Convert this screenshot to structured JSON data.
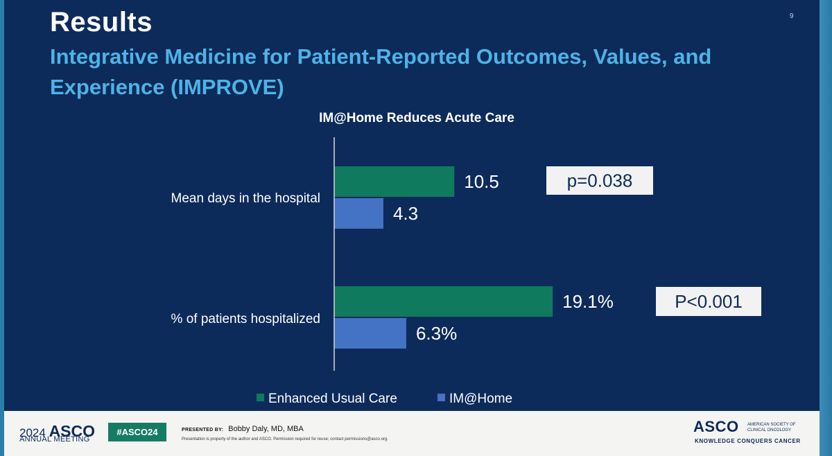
{
  "slide": {
    "title": "Results",
    "number": "9",
    "subtitle": "Integrative Medicine for Patient-Reported Outcomes, Values, and Experience (IMPROVE)"
  },
  "chart_data": {
    "type": "bar",
    "orientation": "horizontal",
    "title": "IM@Home Reduces Acute Care",
    "categories": [
      "Mean days in the hospital",
      "% of patients hospitalized"
    ],
    "series": [
      {
        "name": "Enhanced Usual Care",
        "values": [
          10.5,
          19.1
        ],
        "labels": [
          "10.5",
          "19.1%"
        ],
        "color": "#0f7a5e"
      },
      {
        "name": "IM@Home",
        "values": [
          4.3,
          6.3
        ],
        "labels": [
          "4.3",
          "6.3%"
        ],
        "color": "#4472c4"
      }
    ],
    "annotations": [
      "p=0.038",
      "P<0.001"
    ],
    "legend_position": "bottom",
    "grid": false,
    "xlim": [
      0,
      30
    ]
  },
  "footer": {
    "year": "2024",
    "meeting_brand": "ASCO",
    "meeting": "ANNUAL MEETING",
    "hashtag": "#ASCO24",
    "presented_by_label": "PRESENTED BY:",
    "presenter": "Bobby Daly, MD, MBA",
    "notice": "Presentation is property of the author and ASCO. Permission required for reuse; contact permissions@asco.org.",
    "logo_word": "ASCO",
    "logo_org_line1": "AMERICAN SOCIETY OF",
    "logo_org_line2": "CLINICAL ONCOLOGY",
    "logo_tagline": "KNOWLEDGE CONQUERS CANCER"
  },
  "colors": {
    "background": "#0d2b5a",
    "title": "#ffffff",
    "subtitle": "#4eb3e6",
    "annotation_box": "#f2f2f2"
  }
}
